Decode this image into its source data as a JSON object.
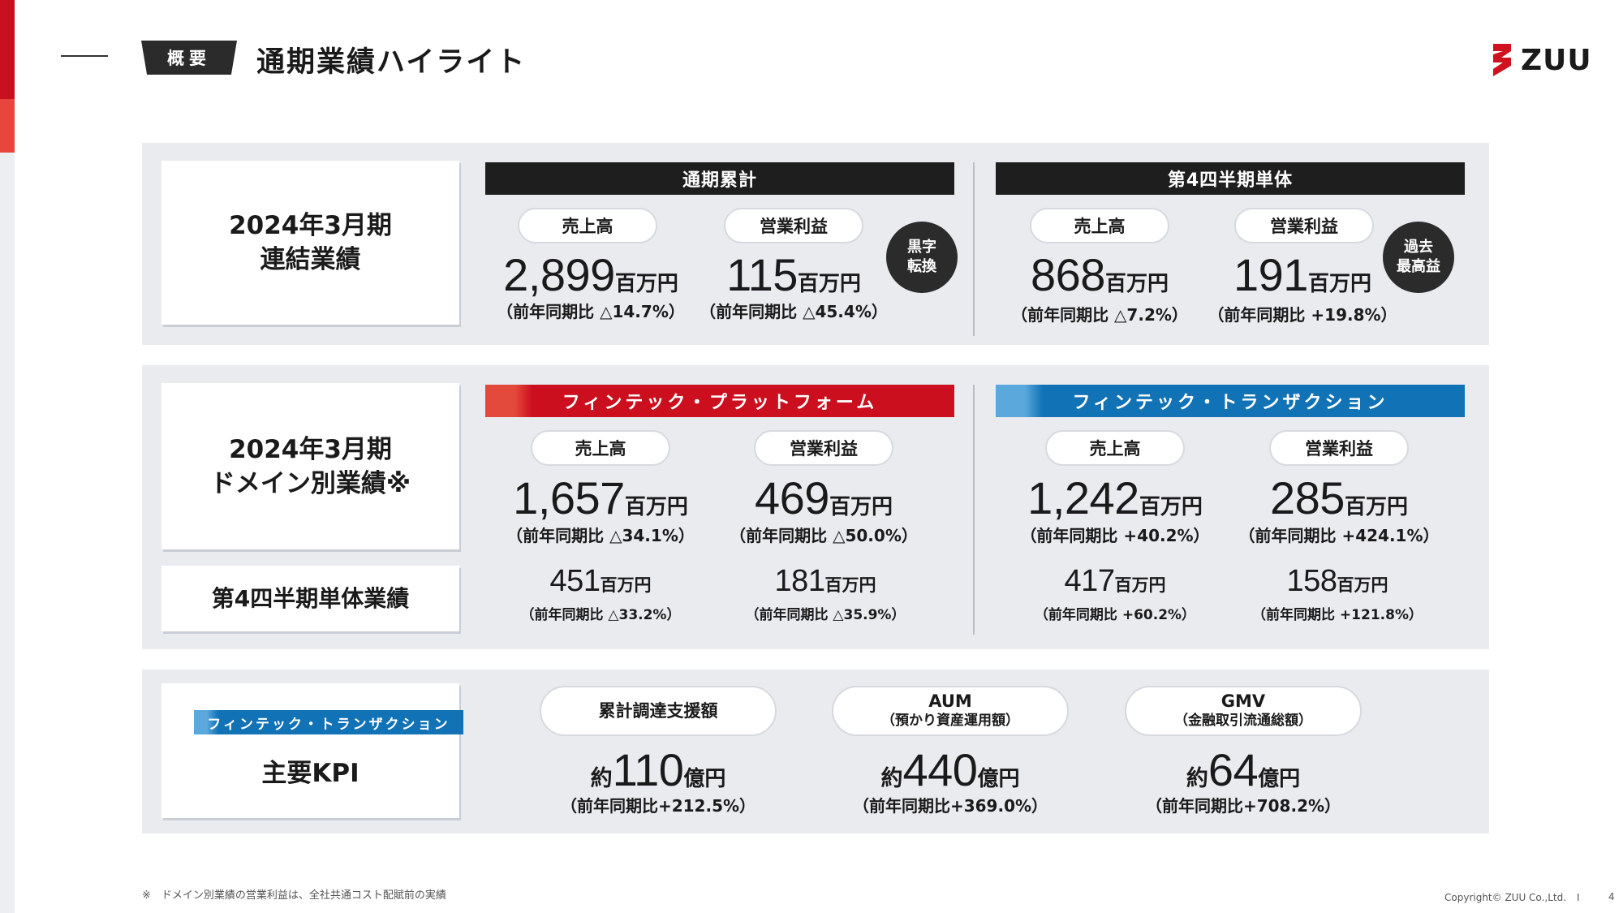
{
  "header": {
    "tag": "概要",
    "title": "通期業績ハイライト",
    "logo_text": "ZUU"
  },
  "colors": {
    "accent_red": "#cc0f1f",
    "accent_blue": "#1172b6",
    "bar_black": "#1e1e1e",
    "panel_bg": "#e9ebef"
  },
  "section1": {
    "label_line1": "2024年3月期",
    "label_line2": "連結業績",
    "full_year": {
      "header": "通期累計",
      "sales_label": "売上高",
      "sales_value": "2,899",
      "sales_unit": "百万円",
      "sales_yoy": "（前年同期比 △14.7%）",
      "op_label": "営業利益",
      "op_value": "115",
      "op_unit": "百万円",
      "op_yoy": "（前年同期比 △45.4%）",
      "badge_line1": "黒字",
      "badge_line2": "転換"
    },
    "q4": {
      "header": "第4四半期単体",
      "sales_label": "売上高",
      "sales_value": "868",
      "sales_unit": "百万円",
      "sales_yoy": "（前年同期比 △7.2%）",
      "op_label": "営業利益",
      "op_value": "191",
      "op_unit": "百万円",
      "op_yoy": "（前年同期比 +19.8%）",
      "badge_line1": "過去",
      "badge_line2": "最高益"
    }
  },
  "section2": {
    "label_line1": "2024年3月期",
    "label_line2": "ドメイン別業績※",
    "q4_label": "第4四半期単体業績",
    "platform": {
      "header": "フィンテック・プラットフォーム",
      "sales_label": "売上高",
      "sales_value": "1,657",
      "sales_unit": "百万円",
      "sales_yoy": "（前年同期比 △34.1%）",
      "op_label": "営業利益",
      "op_value": "469",
      "op_unit": "百万円",
      "op_yoy": "（前年同期比 △50.0%）",
      "q4_sales_value": "451",
      "q4_sales_unit": "百万円",
      "q4_sales_yoy": "（前年同期比 △33.2%）",
      "q4_op_value": "181",
      "q4_op_unit": "百万円",
      "q4_op_yoy": "（前年同期比 △35.9%）"
    },
    "transaction": {
      "header": "フィンテック・トランザクション",
      "sales_label": "売上高",
      "sales_value": "1,242",
      "sales_unit": "百万円",
      "sales_yoy": "（前年同期比 +40.2%）",
      "op_label": "営業利益",
      "op_value": "285",
      "op_unit": "百万円",
      "op_yoy": "（前年同期比 +424.1%）",
      "q4_sales_value": "417",
      "q4_sales_unit": "百万円",
      "q4_sales_yoy": "（前年同期比 +60.2%）",
      "q4_op_value": "158",
      "q4_op_unit": "百万円",
      "q4_op_yoy": "（前年同期比 +121.8%）"
    }
  },
  "section3": {
    "tag": "フィンテック・トランザクション",
    "label": "主要KPI",
    "kpis": [
      {
        "title": "累計調達支援額",
        "subtitle": "",
        "prefix": "約",
        "value": "110",
        "unit": "億円",
        "yoy": "（前年同期比+212.5%）"
      },
      {
        "title": "AUM",
        "subtitle": "（預かり資産運用額）",
        "prefix": "約",
        "value": "440",
        "unit": "億円",
        "yoy": "（前年同期比+369.0%）"
      },
      {
        "title": "GMV",
        "subtitle": "（金融取引流通総額）",
        "prefix": "約",
        "value": "64",
        "unit": "億円",
        "yoy": "（前年同期比+708.2%）"
      }
    ]
  },
  "footer": {
    "footnote": "※　ドメイン別業績の営業利益は、全社共通コスト配賦前の実績",
    "copyright": "Copyright© ZUU Co.,Ltd.",
    "separator": "I",
    "page": "4"
  }
}
